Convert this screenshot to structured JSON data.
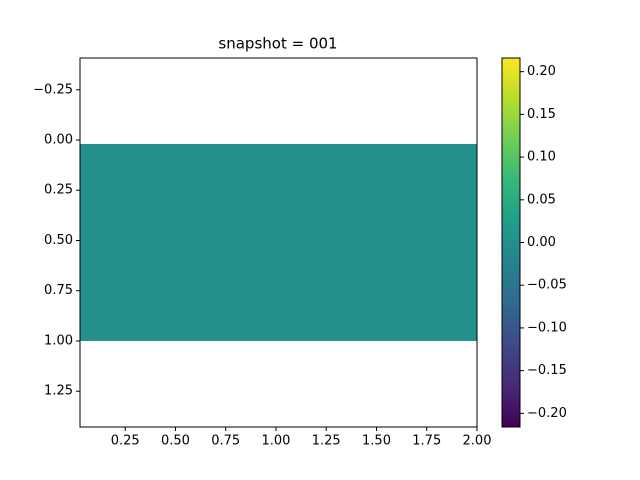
{
  "chart_data": {
    "type": "heatmap",
    "title": "snapshot = 001",
    "cells": [
      {
        "x": [
          0.025,
          2.0
        ],
        "y": [
          0.02,
          1.0
        ],
        "value": 0
      }
    ],
    "xlim": [
      0.025,
      2.0
    ],
    "xticks": [
      {
        "value": 0.25,
        "label": "0.25"
      },
      {
        "value": 0.5,
        "label": "0.50"
      },
      {
        "value": 0.75,
        "label": "0.75"
      },
      {
        "value": 1.0,
        "label": "1.00"
      },
      {
        "value": 1.25,
        "label": "1.25"
      },
      {
        "value": 1.5,
        "label": "1.50"
      },
      {
        "value": 1.75,
        "label": "1.75"
      },
      {
        "value": 2.0,
        "label": "2.00"
      }
    ],
    "ylim": [
      1.428,
      -0.408
    ],
    "yticks": [
      {
        "value": -0.25,
        "label": "−0.25"
      },
      {
        "value": 0,
        "label": "0.00"
      },
      {
        "value": 0.25,
        "label": "0.25"
      },
      {
        "value": 0.5,
        "label": "0.50"
      },
      {
        "value": 0.75,
        "label": "0.75"
      },
      {
        "value": 1.0,
        "label": "1.00"
      },
      {
        "value": 1.25,
        "label": "1.25"
      }
    ],
    "colormap": "viridis",
    "clim": [
      -0.216,
      0.216
    ],
    "cticks": [
      {
        "value": -0.2,
        "label": "−0.20"
      },
      {
        "value": -0.15,
        "label": "−0.15"
      },
      {
        "value": -0.1,
        "label": "−0.10"
      },
      {
        "value": -0.05,
        "label": "−0.05"
      },
      {
        "value": 0,
        "label": "0.00"
      },
      {
        "value": 0.05,
        "label": "0.05"
      },
      {
        "value": 0.1,
        "label": "0.10"
      },
      {
        "value": 0.15,
        "label": "0.15"
      },
      {
        "value": 0.2,
        "label": "0.20"
      }
    ]
  }
}
